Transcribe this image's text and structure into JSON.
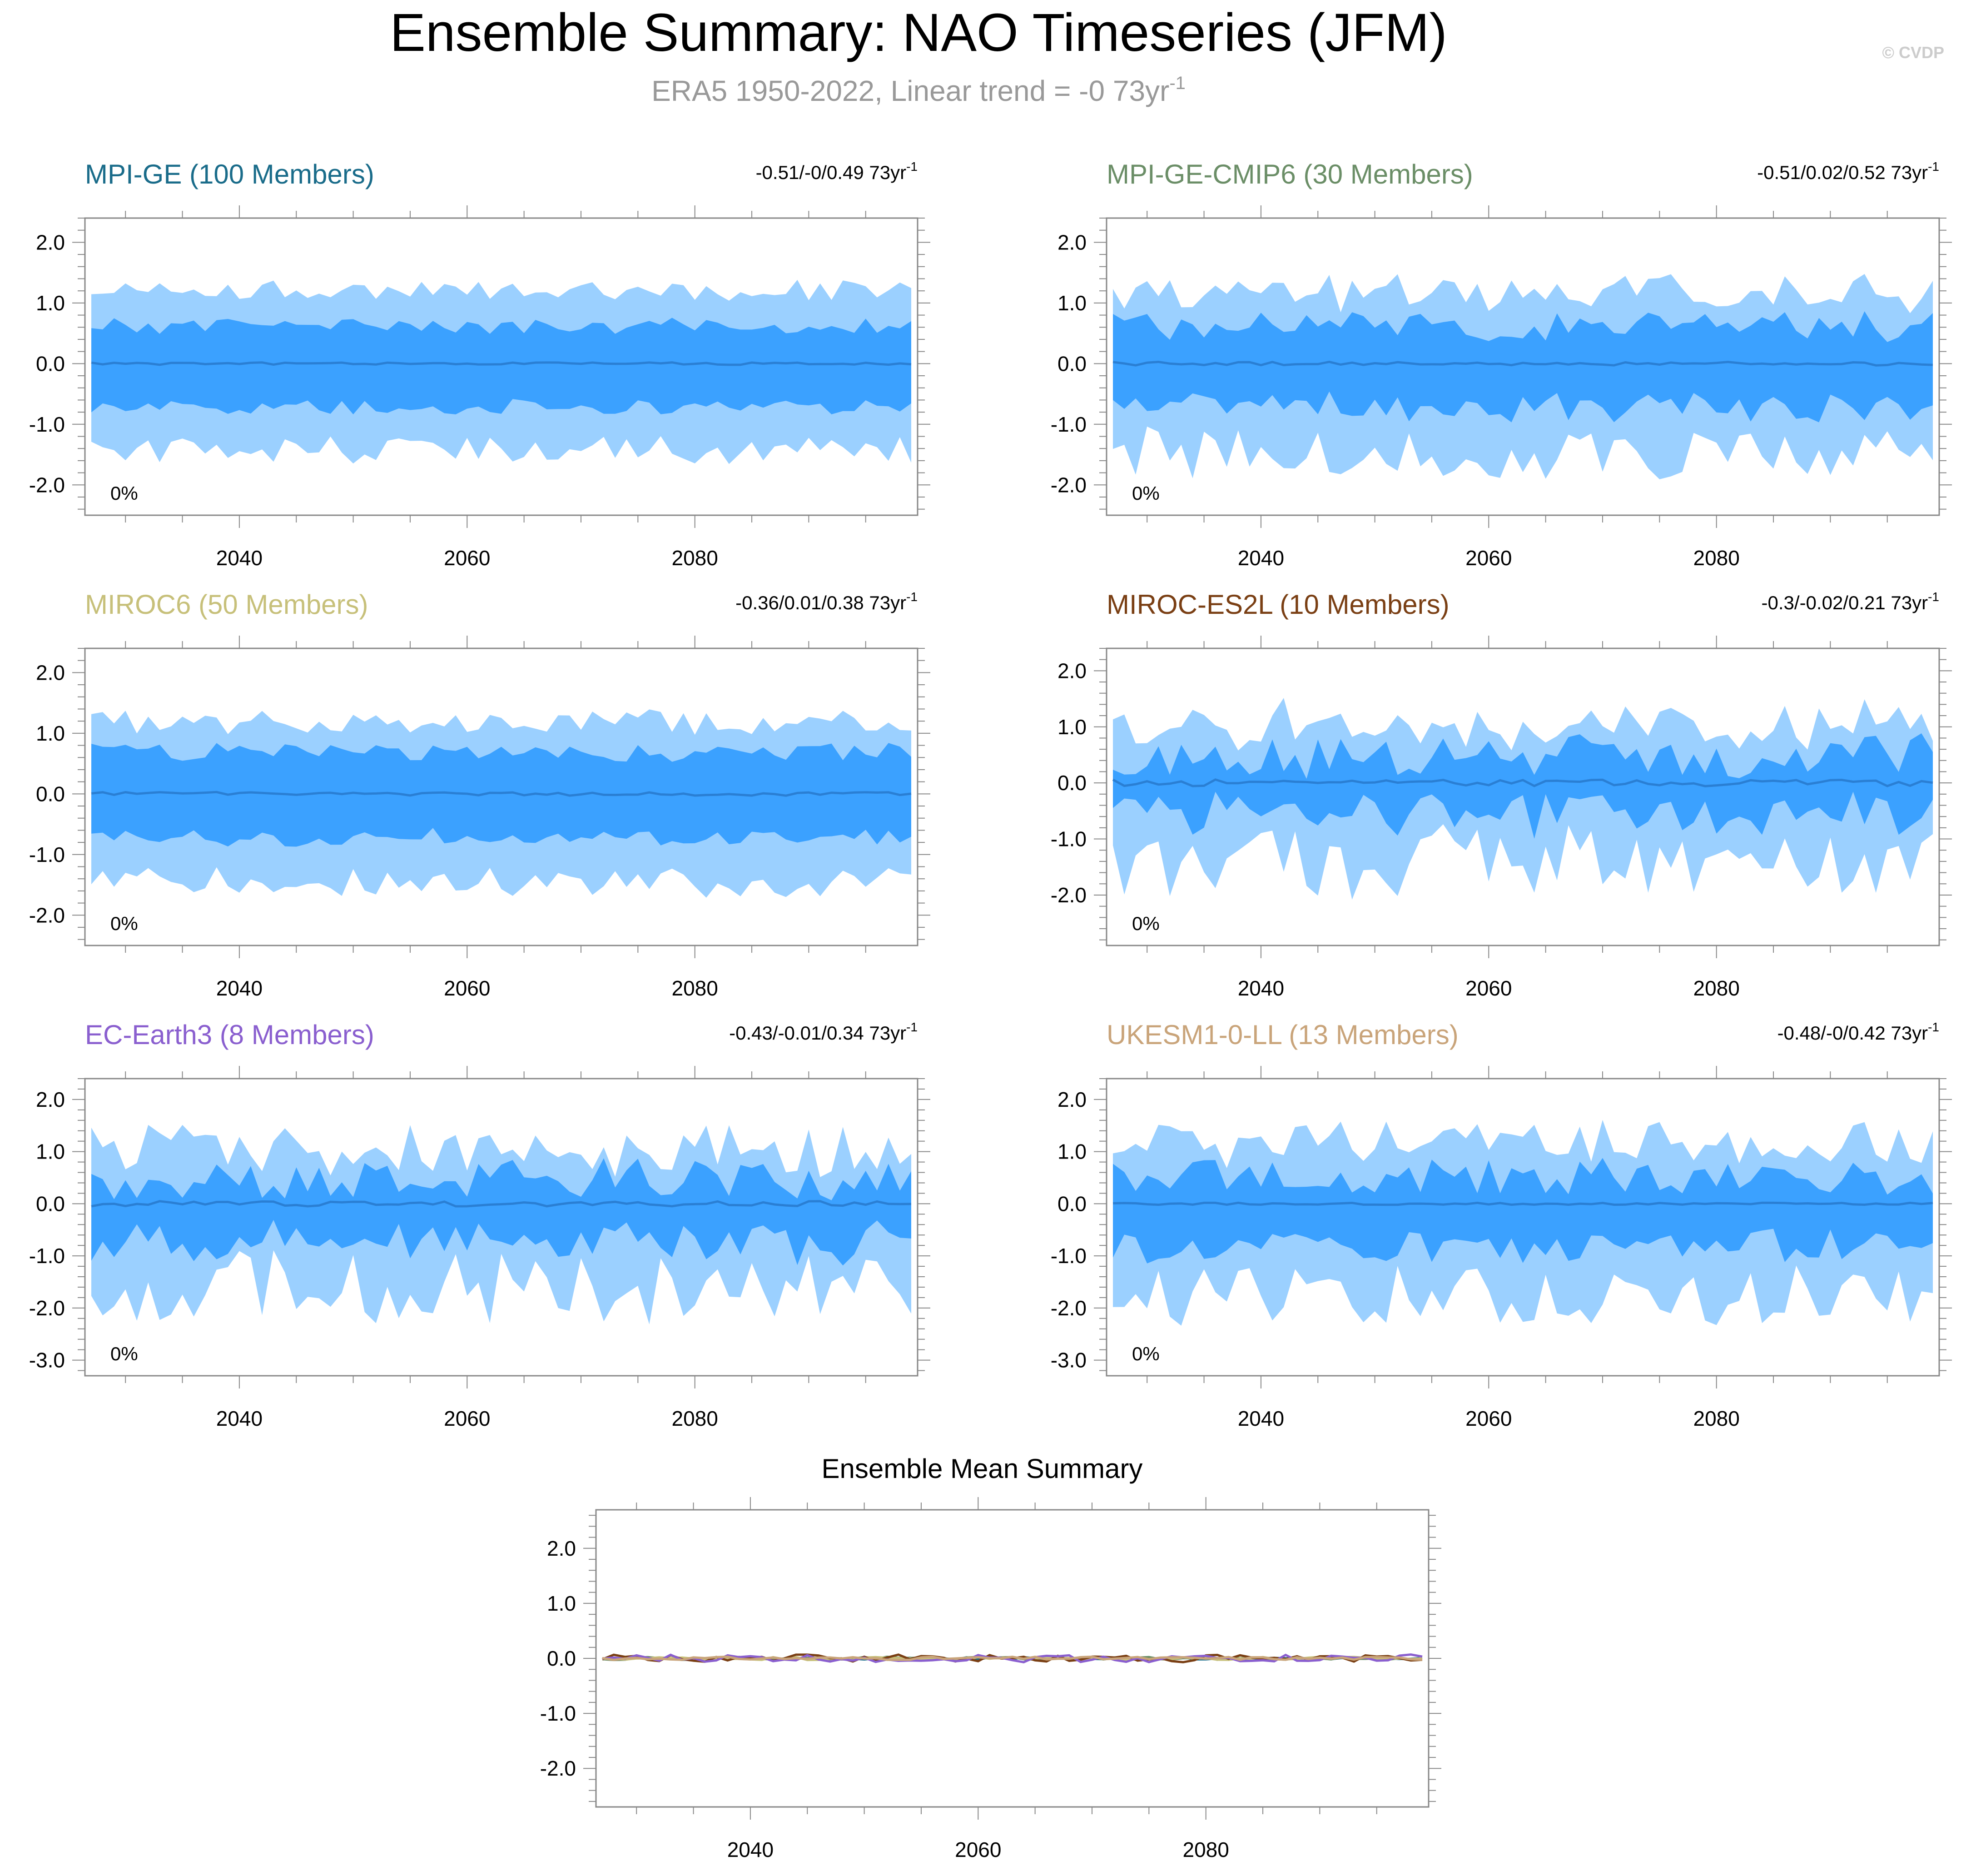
{
  "header": {
    "title": "Ensemble Summary: NAO Timeseries (JFM)",
    "subtitle": "ERA5 1950-2022, Linear trend = -0 73yr",
    "subtitle_sup": "-1",
    "credit": "© CVDP",
    "title_color": "#000000",
    "subtitle_color": "#999999",
    "credit_color": "#cccccc"
  },
  "colors": {
    "band_outer": "#9bd0ff",
    "band_inner": "#3ba1ff",
    "mean_line": "#2a7fd4"
  },
  "chart_data": [
    {
      "type": "area",
      "name": "MPI-GE (100 Members)",
      "title_color": "#1a6c8a",
      "trend_label": "-0.51/-0/0.49 73yr",
      "trend_sup": "-1",
      "pct_label": "0%",
      "x_range": [
        2027,
        2099
      ],
      "ylim": [
        -2.5,
        2.4
      ],
      "yticks": [
        2.0,
        1.0,
        0.0,
        -1.0,
        -2.0
      ],
      "ytick_labels": [
        "2.0",
        "1.0",
        "0.0",
        "-1.0",
        "-2.0"
      ],
      "xticks": [
        2040,
        2060,
        2080
      ],
      "xtick_labels": [
        "2040",
        "2060",
        "2080"
      ],
      "seed": 11,
      "band_pct": {
        "outer_hi": 1.22,
        "inner_hi": 0.62,
        "mean_amp": 0.02,
        "inner_lo": -0.72,
        "outer_lo": -1.42
      },
      "variability": 0.14
    },
    {
      "type": "area",
      "name": "MPI-GE-CMIP6 (30 Members)",
      "title_color": "#6b8e67",
      "trend_label": "-0.51/0.02/0.52 73yr",
      "trend_sup": "-1",
      "pct_label": "0%",
      "x_range": [
        2027,
        2099
      ],
      "ylim": [
        -2.5,
        2.4
      ],
      "yticks": [
        2.0,
        1.0,
        0.0,
        -1.0,
        -2.0
      ],
      "ytick_labels": [
        "2.0",
        "1.0",
        "0.0",
        "-1.0",
        "-2.0"
      ],
      "xticks": [
        2040,
        2060,
        2080
      ],
      "xtick_labels": [
        "2040",
        "2060",
        "2080"
      ],
      "seed": 23,
      "band_pct": {
        "outer_hi": 1.15,
        "inner_hi": 0.62,
        "mean_amp": 0.03,
        "inner_lo": -0.72,
        "outer_lo": -1.45
      },
      "variability": 0.28
    },
    {
      "type": "area",
      "name": "MIROC6 (50 Members)",
      "title_color": "#c7c07a",
      "trend_label": "-0.36/0.01/0.38 73yr",
      "trend_sup": "-1",
      "pct_label": "0%",
      "x_range": [
        2027,
        2099
      ],
      "ylim": [
        -2.5,
        2.4
      ],
      "yticks": [
        2.0,
        1.0,
        0.0,
        -1.0,
        -2.0
      ],
      "ytick_labels": [
        "2.0",
        "1.0",
        "0.0",
        "-1.0",
        "-2.0"
      ],
      "xticks": [
        2040,
        2060,
        2080
      ],
      "xtick_labels": [
        "2040",
        "2060",
        "2080"
      ],
      "seed": 37,
      "band_pct": {
        "outer_hi": 1.18,
        "inner_hi": 0.68,
        "mean_amp": 0.03,
        "inner_lo": -0.72,
        "outer_lo": -1.45
      },
      "variability": 0.16
    },
    {
      "type": "area",
      "name": "MIROC-ES2L (10 Members)",
      "title_color": "#7a3f14",
      "trend_label": "-0.3/-0.02/0.21 73yr",
      "trend_sup": "-1",
      "pct_label": "0%",
      "x_range": [
        2027,
        2099
      ],
      "ylim": [
        -2.9,
        2.4
      ],
      "yticks": [
        2.0,
        1.0,
        0.0,
        -1.0,
        -2.0
      ],
      "ytick_labels": [
        "2.0",
        "1.0",
        "0.0",
        "-1.0",
        "-2.0"
      ],
      "xticks": [
        2040,
        2060,
        2080
      ],
      "xtick_labels": [
        "2040",
        "2060",
        "2080"
      ],
      "seed": 41,
      "band_pct": {
        "outer_hi": 0.95,
        "inner_hi": 0.45,
        "mean_amp": 0.06,
        "inner_lo": -0.55,
        "outer_lo": -1.4
      },
      "variability": 0.45
    },
    {
      "type": "area",
      "name": "EC-Earth3 (8 Members)",
      "title_color": "#8a5fcf",
      "trend_label": "-0.43/-0.01/0.34 73yr",
      "trend_sup": "-1",
      "pct_label": "0%",
      "x_range": [
        2027,
        2099
      ],
      "ylim": [
        -3.3,
        2.4
      ],
      "yticks": [
        2.0,
        1.0,
        0.0,
        -1.0,
        -2.0,
        -3.0
      ],
      "ytick_labels": [
        "2.0",
        "1.0",
        "0.0",
        "-1.0",
        "-2.0",
        "-3.0"
      ],
      "xticks": [
        2040,
        2060,
        2080
      ],
      "xtick_labels": [
        "2040",
        "2060",
        "2080"
      ],
      "seed": 53,
      "band_pct": {
        "outer_hi": 1.0,
        "inner_hi": 0.45,
        "mean_amp": 0.05,
        "inner_lo": -0.75,
        "outer_lo": -1.6
      },
      "variability": 0.45
    },
    {
      "type": "area",
      "name": "UKESM1-0-LL (13 Members)",
      "title_color": "#c9a47a",
      "trend_label": "-0.48/-0/0.42 73yr",
      "trend_sup": "-1",
      "pct_label": "0%",
      "x_range": [
        2027,
        2099
      ],
      "ylim": [
        -3.3,
        2.4
      ],
      "yticks": [
        2.0,
        1.0,
        0.0,
        -1.0,
        -2.0,
        -3.0
      ],
      "ytick_labels": [
        "2.0",
        "1.0",
        "0.0",
        "-1.0",
        "-2.0",
        "-3.0"
      ],
      "xticks": [
        2040,
        2060,
        2080
      ],
      "xtick_labels": [
        "2040",
        "2060",
        "2080"
      ],
      "seed": 67,
      "band_pct": {
        "outer_hi": 1.15,
        "inner_hi": 0.52,
        "mean_amp": 0.02,
        "inner_lo": -0.8,
        "outer_lo": -1.75
      },
      "variability": 0.38
    },
    {
      "type": "line",
      "name": "Ensemble Mean Summary",
      "title_color": "#000000",
      "x_range": [
        2027,
        2099
      ],
      "ylim": [
        -2.7,
        2.7
      ],
      "yticks": [
        2.0,
        1.0,
        0.0,
        -1.0,
        -2.0
      ],
      "ytick_labels": [
        "2.0",
        "1.0",
        "0.0",
        "-1.0",
        "-2.0"
      ],
      "xticks": [
        2040,
        2060,
        2080
      ],
      "xtick_labels": [
        "2040",
        "2060",
        "2080"
      ],
      "series": [
        {
          "name": "MPI-GE",
          "color": "#1a6c8a",
          "seed": 11,
          "amp": 0.02
        },
        {
          "name": "MPI-GE-CMIP6",
          "color": "#6b8e67",
          "seed": 23,
          "amp": 0.03
        },
        {
          "name": "MIROC6",
          "color": "#c7c07a",
          "seed": 37,
          "amp": 0.03
        },
        {
          "name": "MIROC-ES2L",
          "color": "#7a3f14",
          "seed": 41,
          "amp": 0.07
        },
        {
          "name": "EC-Earth3",
          "color": "#8a5fcf",
          "seed": 53,
          "amp": 0.07
        },
        {
          "name": "UKESM1-0-LL",
          "color": "#c9a47a",
          "seed": 67,
          "amp": 0.03
        }
      ]
    }
  ]
}
